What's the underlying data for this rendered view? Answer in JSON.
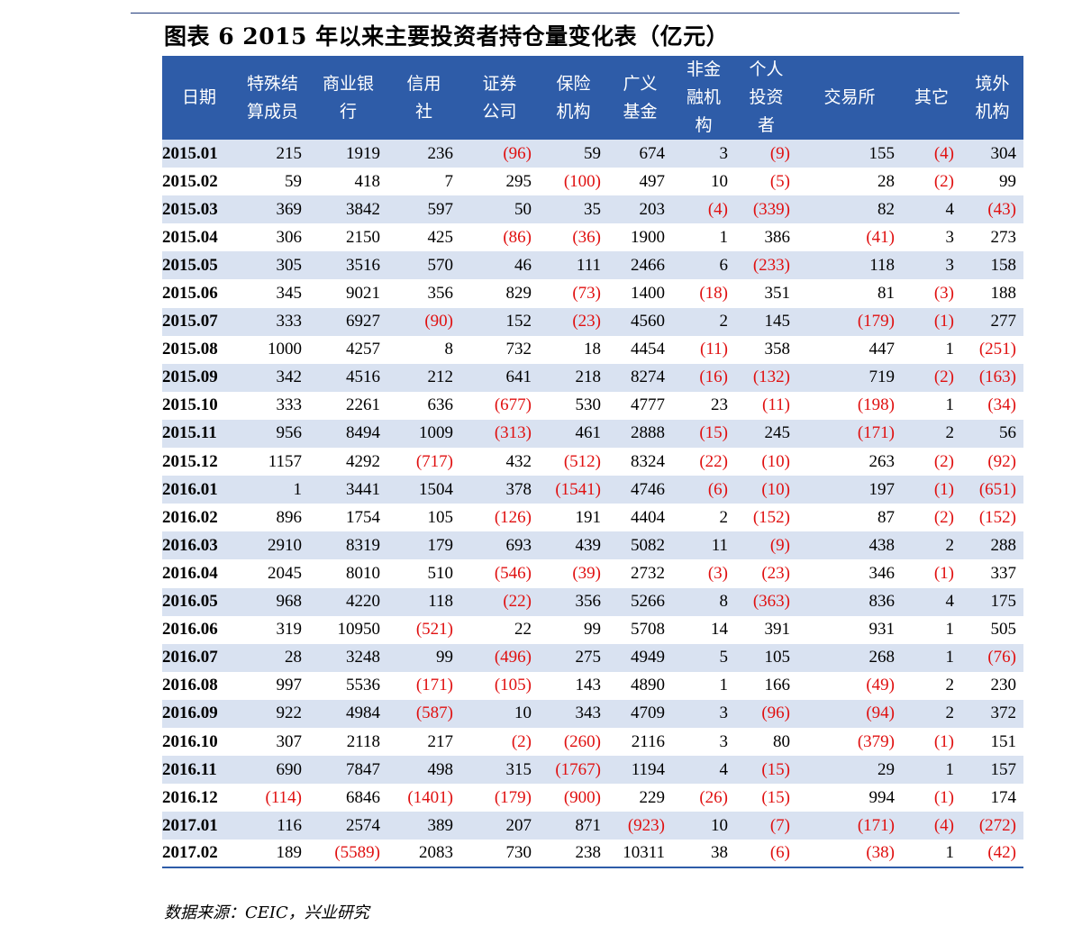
{
  "title": "图表 6 2015 年以来主要投资者持仓量变化表（亿元）",
  "source": "数据来源：CEIC，兴业研究",
  "columns": [
    "日期",
    "特殊结\n算成员",
    "商业银\n行",
    "信用\n社",
    "证券\n公司",
    "保险\n机构",
    "广义\n基金",
    "非金\n融机\n构",
    "个人\n投资\n者",
    "交易所",
    "其它",
    "境外\n机构"
  ],
  "rows": [
    [
      "2015.01",
      "215",
      "1919",
      "236",
      "(96)",
      "59",
      "674",
      "3",
      "(9)",
      "155",
      "(4)",
      "304"
    ],
    [
      "2015.02",
      "59",
      "418",
      "7",
      "295",
      "(100)",
      "497",
      "10",
      "(5)",
      "28",
      "(2)",
      "99"
    ],
    [
      "2015.03",
      "369",
      "3842",
      "597",
      "50",
      "35",
      "203",
      "(4)",
      "(339)",
      "82",
      "4",
      "(43)"
    ],
    [
      "2015.04",
      "306",
      "2150",
      "425",
      "(86)",
      "(36)",
      "1900",
      "1",
      "386",
      "(41)",
      "3",
      "273"
    ],
    [
      "2015.05",
      "305",
      "3516",
      "570",
      "46",
      "111",
      "2466",
      "6",
      "(233)",
      "118",
      "3",
      "158"
    ],
    [
      "2015.06",
      "345",
      "9021",
      "356",
      "829",
      "(73)",
      "1400",
      "(18)",
      "351",
      "81",
      "(3)",
      "188"
    ],
    [
      "2015.07",
      "333",
      "6927",
      "(90)",
      "152",
      "(23)",
      "4560",
      "2",
      "145",
      "(179)",
      "(1)",
      "277"
    ],
    [
      "2015.08",
      "1000",
      "4257",
      "8",
      "732",
      "18",
      "4454",
      "(11)",
      "358",
      "447",
      "1",
      "(251)"
    ],
    [
      "2015.09",
      "342",
      "4516",
      "212",
      "641",
      "218",
      "8274",
      "(16)",
      "(132)",
      "719",
      "(2)",
      "(163)"
    ],
    [
      "2015.10",
      "333",
      "2261",
      "636",
      "(677)",
      "530",
      "4777",
      "23",
      "(11)",
      "(198)",
      "1",
      "(34)"
    ],
    [
      "2015.11",
      "956",
      "8494",
      "1009",
      "(313)",
      "461",
      "2888",
      "(15)",
      "245",
      "(171)",
      "2",
      "56"
    ],
    [
      "2015.12",
      "1157",
      "4292",
      "(717)",
      "432",
      "(512)",
      "8324",
      "(22)",
      "(10)",
      "263",
      "(2)",
      "(92)"
    ],
    [
      "2016.01",
      "1",
      "3441",
      "1504",
      "378",
      "(1541)",
      "4746",
      "(6)",
      "(10)",
      "197",
      "(1)",
      "(651)"
    ],
    [
      "2016.02",
      "896",
      "1754",
      "105",
      "(126)",
      "191",
      "4404",
      "2",
      "(152)",
      "87",
      "(2)",
      "(152)"
    ],
    [
      "2016.03",
      "2910",
      "8319",
      "179",
      "693",
      "439",
      "5082",
      "11",
      "(9)",
      "438",
      "2",
      "288"
    ],
    [
      "2016.04",
      "2045",
      "8010",
      "510",
      "(546)",
      "(39)",
      "2732",
      "(3)",
      "(23)",
      "346",
      "(1)",
      "337"
    ],
    [
      "2016.05",
      "968",
      "4220",
      "118",
      "(22)",
      "356",
      "5266",
      "8",
      "(363)",
      "836",
      "4",
      "175"
    ],
    [
      "2016.06",
      "319",
      "10950",
      "(521)",
      "22",
      "99",
      "5708",
      "14",
      "391",
      "931",
      "1",
      "505"
    ],
    [
      "2016.07",
      "28",
      "3248",
      "99",
      "(496)",
      "275",
      "4949",
      "5",
      "105",
      "268",
      "1",
      "(76)"
    ],
    [
      "2016.08",
      "997",
      "5536",
      "(171)",
      "(105)",
      "143",
      "4890",
      "1",
      "166",
      "(49)",
      "2",
      "230"
    ],
    [
      "2016.09",
      "922",
      "4984",
      "(587)",
      "10",
      "343",
      "4709",
      "3",
      "(96)",
      "(94)",
      "2",
      "372"
    ],
    [
      "2016.10",
      "307",
      "2118",
      "217",
      "(2)",
      "(260)",
      "2116",
      "3",
      "80",
      "(379)",
      "(1)",
      "151"
    ],
    [
      "2016.11",
      "690",
      "7847",
      "498",
      "315",
      "(1767)",
      "1194",
      "4",
      "(15)",
      "29",
      "1",
      "157"
    ],
    [
      "2016.12",
      "(114)",
      "6846",
      "(1401)",
      "(179)",
      "(900)",
      "229",
      "(26)",
      "(15)",
      "994",
      "(1)",
      "174"
    ],
    [
      "2017.01",
      "116",
      "2574",
      "389",
      "207",
      "871",
      "(923)",
      "10",
      "(7)",
      "(171)",
      "(4)",
      "(272)"
    ],
    [
      "2017.02",
      "189",
      "(5589)",
      "2083",
      "730",
      "238",
      "10311",
      "38",
      "(6)",
      "(38)",
      "1",
      "(42)"
    ]
  ],
  "colors": {
    "header_bg": "#2e5ca8",
    "row_shade": "#d9e2f1",
    "negative": "#e01010",
    "rule": "#1f3a7a"
  }
}
